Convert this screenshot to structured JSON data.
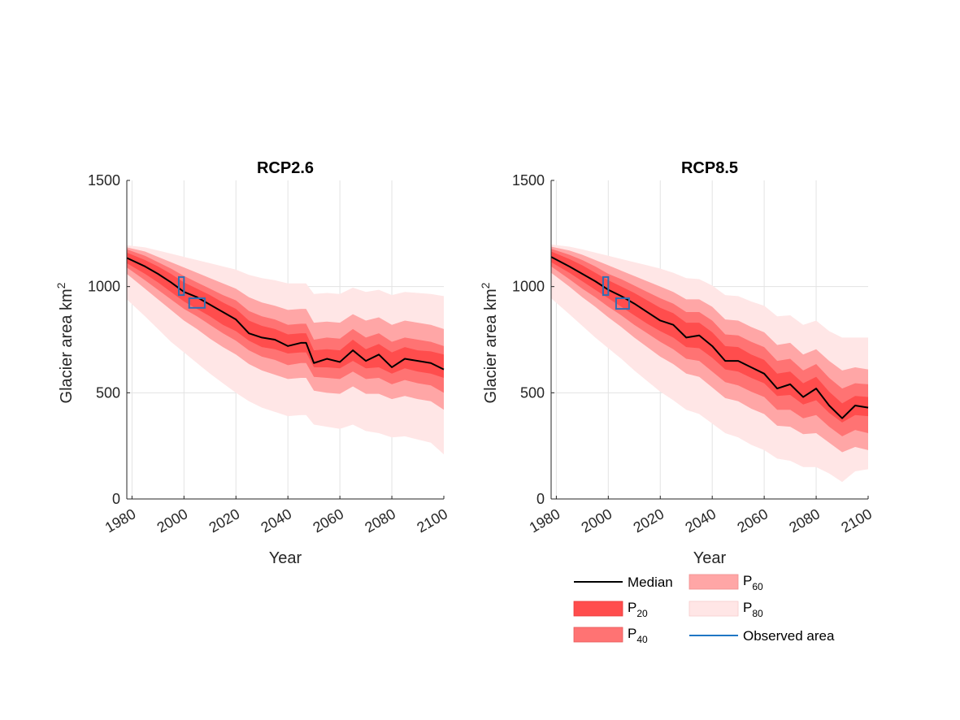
{
  "chart_data": [
    {
      "type": "area",
      "title": "RCP2.6",
      "xlabel": "Year",
      "ylabel": "Glacier area km",
      "ylabel_sup": "2",
      "xlim": [
        1978,
        2100
      ],
      "ylim": [
        0,
        1500
      ],
      "xticks": [
        "1980",
        "2000",
        "2020",
        "2040",
        "2060",
        "2080",
        "2100"
      ],
      "yticks": [
        "0",
        "500",
        "1000",
        "1500"
      ],
      "grid": true,
      "x": [
        1978,
        1985,
        1990,
        1995,
        2000,
        2005,
        2010,
        2015,
        2020,
        2025,
        2030,
        2035,
        2040,
        2045,
        2047,
        2050,
        2055,
        2060,
        2065,
        2070,
        2075,
        2080,
        2085,
        2090,
        2095,
        2100
      ],
      "median": [
        1135,
        1095,
        1060,
        1020,
        975,
        950,
        915,
        880,
        845,
        780,
        760,
        750,
        720,
        735,
        735,
        640,
        660,
        645,
        700,
        650,
        680,
        620,
        660,
        650,
        640,
        610
      ],
      "p20": {
        "lower": [
          1110,
          1060,
          1020,
          975,
          930,
          895,
          860,
          820,
          790,
          745,
          715,
          705,
          685,
          690,
          690,
          620,
          620,
          615,
          650,
          615,
          620,
          590,
          615,
          600,
          590,
          570
        ],
        "upper": [
          1160,
          1125,
          1095,
          1060,
          1020,
          990,
          960,
          925,
          895,
          840,
          815,
          800,
          775,
          780,
          780,
          700,
          705,
          700,
          750,
          705,
          730,
          690,
          715,
          700,
          695,
          680
        ]
      },
      "p40": {
        "lower": [
          1090,
          1030,
          985,
          940,
          895,
          860,
          820,
          780,
          745,
          700,
          670,
          655,
          630,
          640,
          640,
          575,
          570,
          565,
          600,
          565,
          570,
          540,
          560,
          545,
          535,
          500
        ],
        "upper": [
          1175,
          1145,
          1115,
          1085,
          1050,
          1020,
          990,
          960,
          935,
          885,
          860,
          845,
          820,
          825,
          825,
          750,
          760,
          755,
          800,
          760,
          780,
          740,
          760,
          750,
          740,
          720
        ]
      },
      "p60": {
        "lower": [
          1060,
          990,
          940,
          890,
          840,
          800,
          755,
          715,
          680,
          635,
          605,
          585,
          565,
          570,
          570,
          510,
          500,
          495,
          530,
          495,
          495,
          470,
          485,
          470,
          460,
          420
        ],
        "upper": [
          1185,
          1165,
          1140,
          1115,
          1090,
          1065,
          1040,
          1015,
          990,
          950,
          925,
          910,
          890,
          895,
          895,
          830,
          835,
          830,
          870,
          840,
          855,
          820,
          840,
          830,
          820,
          800
        ]
      },
      "p80": {
        "lower": [
          940,
          860,
          800,
          740,
          690,
          640,
          590,
          545,
          500,
          460,
          430,
          410,
          390,
          395,
          395,
          350,
          340,
          330,
          350,
          320,
          310,
          290,
          295,
          280,
          265,
          210
        ],
        "upper": [
          1195,
          1185,
          1170,
          1155,
          1140,
          1125,
          1110,
          1095,
          1080,
          1055,
          1040,
          1030,
          1015,
          1015,
          1015,
          965,
          970,
          965,
          995,
          975,
          985,
          960,
          975,
          970,
          965,
          955
        ]
      },
      "observed": [
        {
          "x": [
            1998,
            2000
          ],
          "y": [
            960,
            1045
          ]
        },
        {
          "x": [
            2002,
            2008
          ],
          "y": [
            900,
            945
          ]
        }
      ]
    },
    {
      "type": "area",
      "title": "RCP8.5",
      "xlabel": "Year",
      "ylabel": "Glacier area km",
      "ylabel_sup": "2",
      "xlim": [
        1978,
        2100
      ],
      "ylim": [
        0,
        1500
      ],
      "xticks": [
        "1980",
        "2000",
        "2020",
        "2040",
        "2060",
        "2080",
        "2100"
      ],
      "yticks": [
        "0",
        "500",
        "1000",
        "1500"
      ],
      "grid": true,
      "x": [
        1978,
        1985,
        1990,
        1995,
        2000,
        2005,
        2010,
        2015,
        2020,
        2025,
        2030,
        2035,
        2040,
        2045,
        2050,
        2055,
        2060,
        2065,
        2070,
        2075,
        2080,
        2085,
        2090,
        2095,
        2100
      ],
      "median": [
        1140,
        1095,
        1060,
        1025,
        985,
        955,
        920,
        880,
        840,
        820,
        760,
        770,
        720,
        650,
        650,
        620,
        590,
        520,
        540,
        480,
        520,
        440,
        380,
        440,
        430
      ],
      "p20": {
        "lower": [
          1115,
          1065,
          1025,
          985,
          945,
          905,
          865,
          825,
          790,
          760,
          715,
          710,
          665,
          610,
          600,
          570,
          545,
          485,
          490,
          445,
          465,
          405,
          360,
          395,
          390
        ],
        "upper": [
          1165,
          1130,
          1100,
          1065,
          1030,
          1000,
          970,
          935,
          900,
          875,
          830,
          830,
          785,
          720,
          715,
          680,
          655,
          590,
          600,
          545,
          575,
          505,
          450,
          485,
          480
        ]
      },
      "p40": {
        "lower": [
          1095,
          1035,
          990,
          950,
          905,
          865,
          820,
          780,
          740,
          705,
          660,
          650,
          600,
          550,
          535,
          505,
          480,
          420,
          420,
          380,
          395,
          340,
          295,
          325,
          310
        ],
        "upper": [
          1178,
          1150,
          1125,
          1095,
          1060,
          1035,
          1005,
          975,
          945,
          920,
          880,
          880,
          840,
          775,
          770,
          740,
          715,
          650,
          660,
          605,
          635,
          570,
          520,
          545,
          540
        ]
      },
      "p60": {
        "lower": [
          1065,
          1000,
          950,
          905,
          855,
          810,
          760,
          715,
          670,
          635,
          590,
          575,
          525,
          475,
          460,
          425,
          400,
          345,
          340,
          305,
          310,
          265,
          220,
          245,
          230
        ],
        "upper": [
          1188,
          1170,
          1150,
          1125,
          1100,
          1075,
          1050,
          1025,
          1000,
          975,
          940,
          940,
          905,
          845,
          840,
          810,
          785,
          725,
          735,
          680,
          705,
          650,
          605,
          620,
          610
        ]
      },
      "p80": {
        "lower": [
          945,
          870,
          815,
          760,
          710,
          660,
          605,
          555,
          505,
          465,
          420,
          400,
          355,
          310,
          290,
          255,
          230,
          190,
          180,
          150,
          150,
          120,
          80,
          130,
          140
        ],
        "upper": [
          1198,
          1188,
          1175,
          1160,
          1145,
          1130,
          1115,
          1100,
          1085,
          1065,
          1040,
          1035,
          1005,
          960,
          955,
          930,
          910,
          860,
          865,
          820,
          840,
          790,
          760,
          760,
          760
        ]
      },
      "observed": [
        {
          "x": [
            1998,
            2000
          ],
          "y": [
            960,
            1045
          ]
        },
        {
          "x": [
            2003,
            2008
          ],
          "y": [
            895,
            945
          ]
        }
      ]
    }
  ],
  "legend": {
    "median": "Median",
    "p20": {
      "base": "P",
      "sub": "20"
    },
    "p40": {
      "base": "P",
      "sub": "40"
    },
    "p60": {
      "base": "P",
      "sub": "60"
    },
    "p80": {
      "base": "P",
      "sub": "80"
    },
    "observed": "Observed area"
  },
  "colors": {
    "median": "#000000",
    "p20": "#ff4d4d",
    "p40": "#ff7373",
    "p60": "#ffa6a6",
    "p80": "#ffe6e6",
    "observed": "#2f6fb5",
    "legend_observed": "#1f77c4",
    "grid": "#e3e3e3",
    "axis": "#262626"
  }
}
